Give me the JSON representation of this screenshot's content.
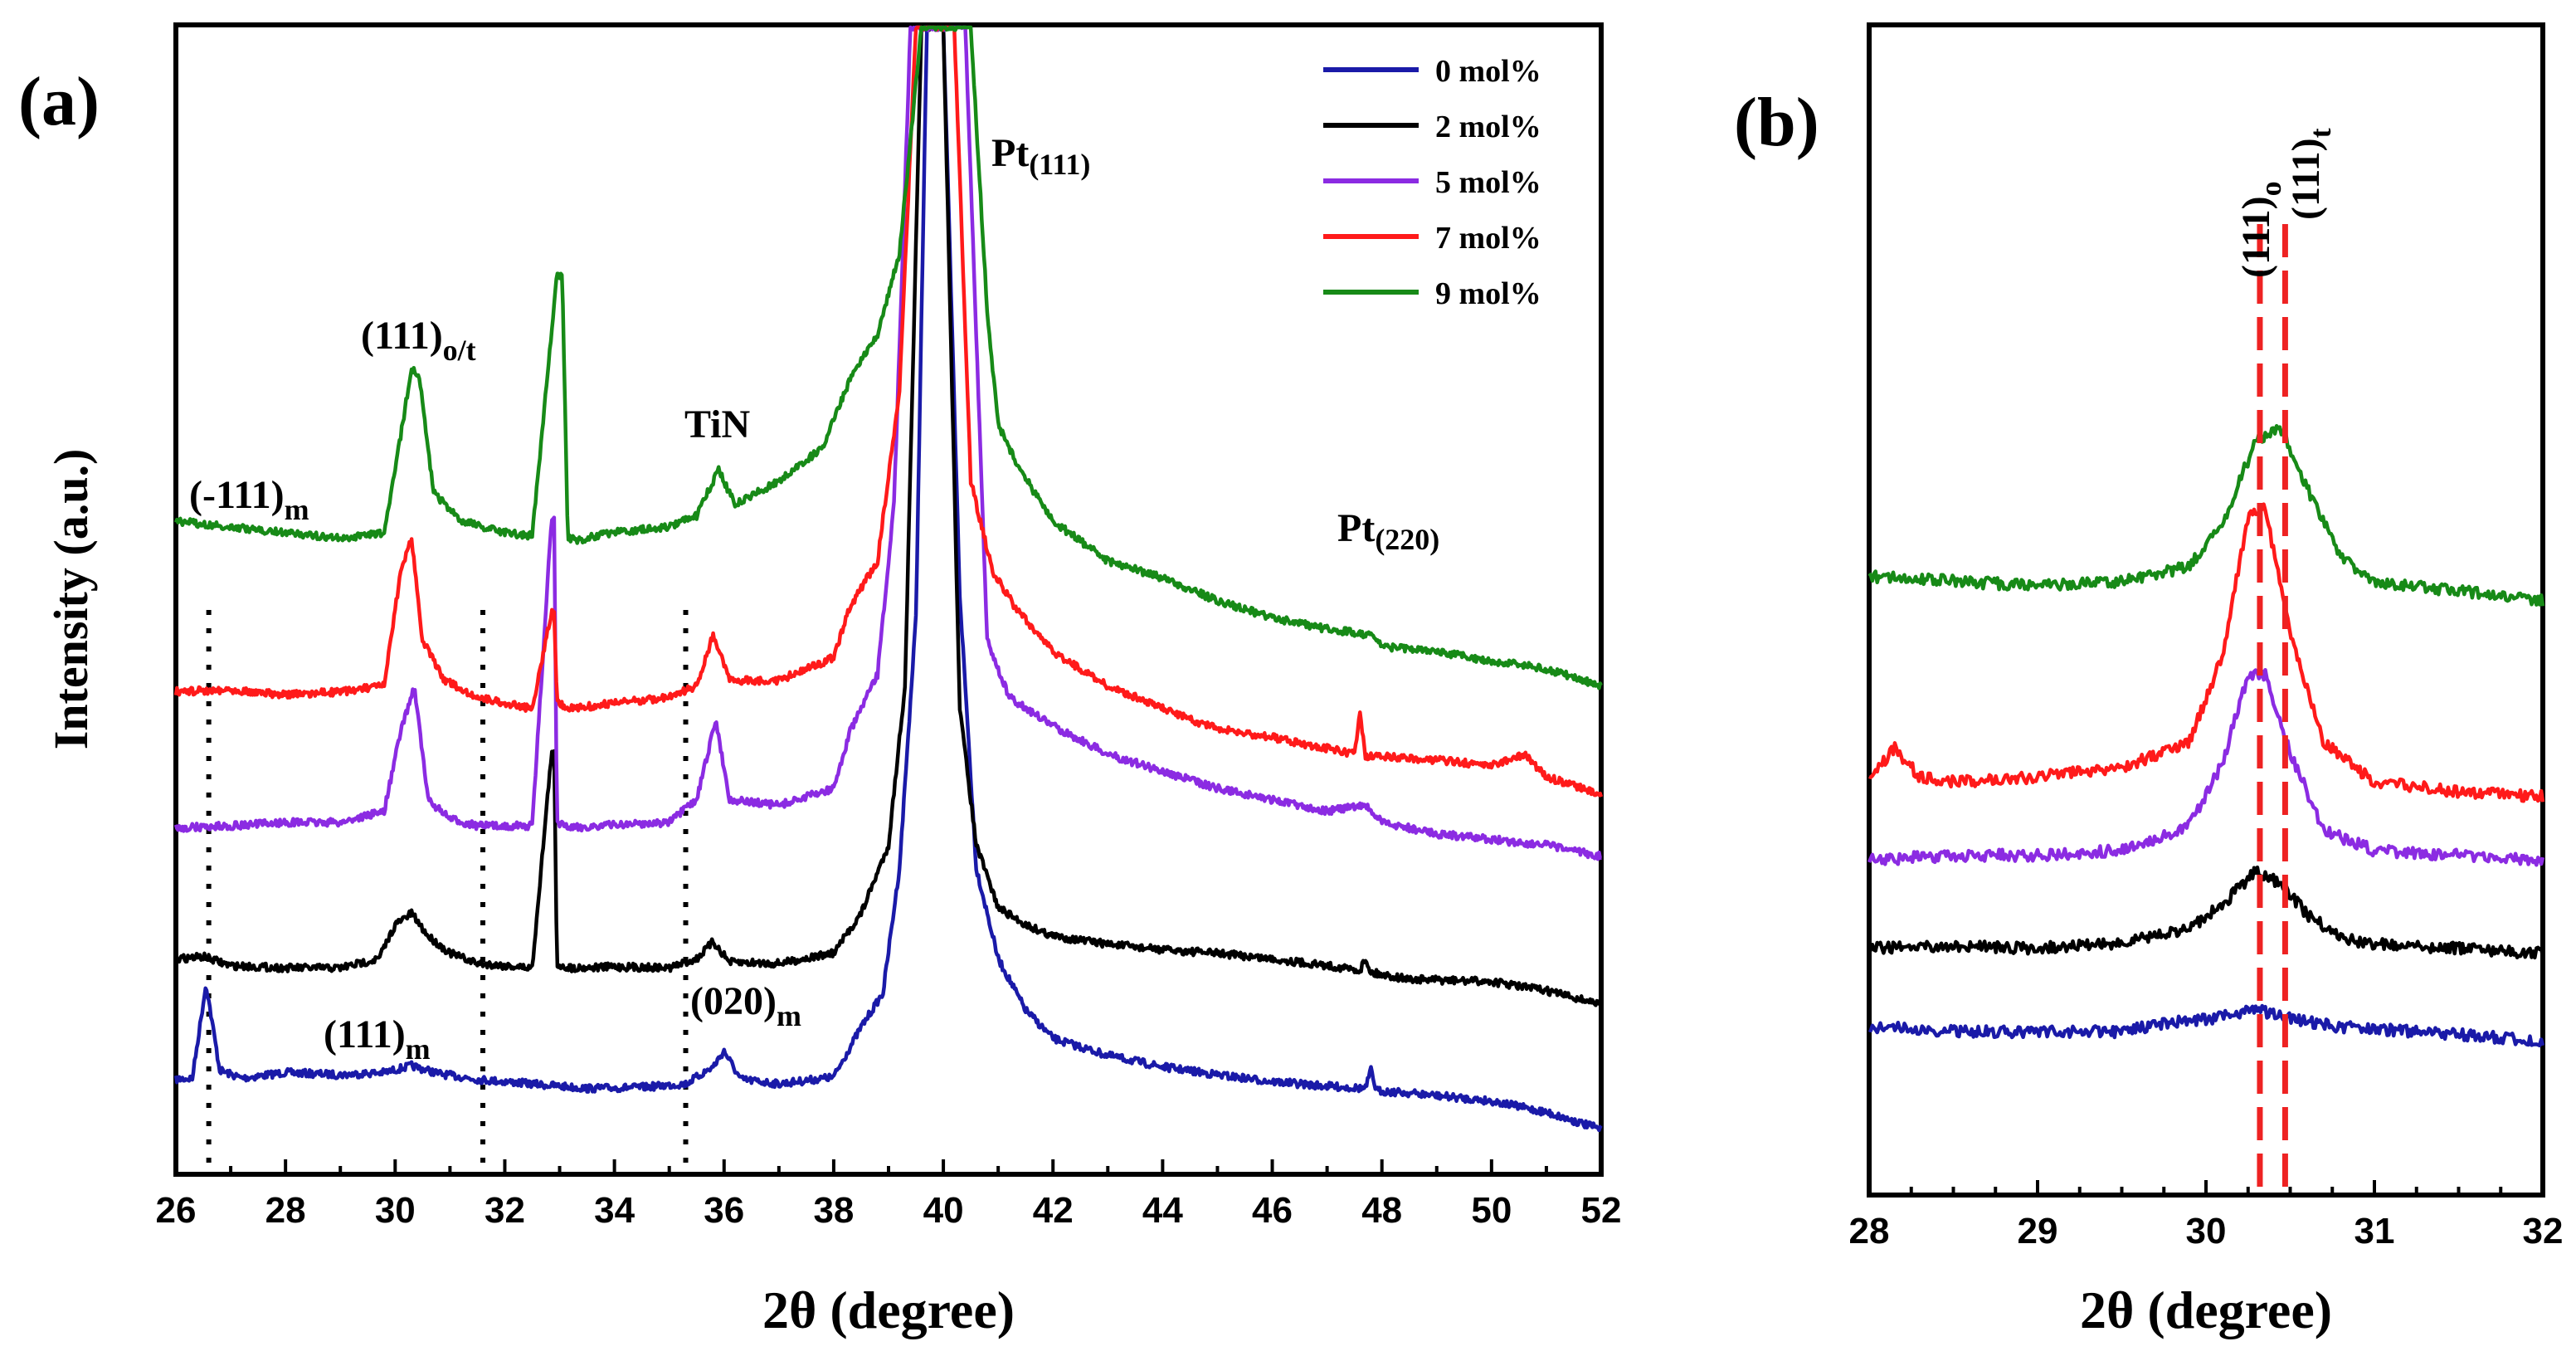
{
  "chart_data": [
    {
      "panel": "(a)",
      "type": "line",
      "xlabel": "2θ (degree)",
      "ylabel": "Intensity (a.u.)",
      "xlim": [
        26,
        52
      ],
      "xticks": [
        26,
        28,
        30,
        32,
        34,
        36,
        38,
        40,
        42,
        44,
        46,
        48,
        50,
        52
      ],
      "y_ticks_shown": false,
      "legend": {
        "position": "top-right",
        "entries": [
          {
            "label": "0 mol%",
            "color": "#1a1aa8"
          },
          {
            "label": "2 mol%",
            "color": "#000000"
          },
          {
            "label": "5 mol%",
            "color": "#8b2be2"
          },
          {
            "label": "7 mol%",
            "color": "#ff1a1a"
          },
          {
            "label": "9 mol%",
            "color": "#178a17"
          }
        ]
      },
      "series": [
        {
          "name": "0 mol%",
          "color": "#1a1aa8",
          "x": [
            26,
            26.3,
            26.55,
            26.8,
            27.2,
            28,
            29,
            29.8,
            30.3,
            30.8,
            31.5,
            32.5,
            33.5,
            34.5,
            35.3,
            35.8,
            36.0,
            36.3,
            37,
            38,
            38.5,
            38.9,
            39.2,
            39.5,
            39.7,
            40.0,
            40.3,
            40.6,
            41.0,
            41.5,
            42,
            43,
            44,
            45,
            46,
            47,
            47.7,
            47.8,
            47.9,
            48.5,
            50,
            51,
            52
          ],
          "y": [
            0.74,
            0.75,
            1.58,
            0.82,
            0.75,
            0.8,
            0.78,
            0.8,
            0.86,
            0.79,
            0.74,
            0.7,
            0.66,
            0.67,
            0.7,
            0.85,
            0.99,
            0.74,
            0.7,
            0.76,
            1.2,
            1.5,
            2.6,
            4.8,
            10.0,
            10.0,
            5.0,
            2.6,
            1.8,
            1.35,
            1.1,
            0.95,
            0.85,
            0.78,
            0.72,
            0.68,
            0.66,
            0.82,
            0.64,
            0.62,
            0.55,
            0.45,
            0.3
          ]
        },
        {
          "name": "2 mol%",
          "color": "#000000",
          "x": [
            26,
            26.5,
            27,
            28,
            29,
            29.7,
            30.0,
            30.3,
            30.6,
            31,
            31.5,
            32.5,
            32.85,
            32.9,
            32.95,
            33.2,
            34,
            35,
            35.5,
            35.8,
            36.1,
            37,
            38,
            38.5,
            39,
            39.3,
            39.6,
            40.0,
            40.3,
            40.6,
            41,
            41.5,
            42,
            43,
            44,
            45,
            46,
            47,
            47.6,
            47.7,
            47.8,
            48.5,
            50,
            51,
            52
          ],
          "y": [
            1.8,
            1.82,
            1.74,
            1.72,
            1.72,
            1.8,
            2.1,
            2.2,
            2.0,
            1.85,
            1.76,
            1.72,
            3.6,
            3.6,
            1.75,
            1.72,
            1.73,
            1.72,
            1.8,
            1.95,
            1.77,
            1.76,
            1.85,
            2.2,
            2.8,
            4.2,
            10.0,
            10.0,
            4.0,
            2.8,
            2.25,
            2.1,
            2.0,
            1.93,
            1.88,
            1.85,
            1.8,
            1.74,
            1.7,
            1.8,
            1.68,
            1.62,
            1.6,
            1.52,
            1.4
          ]
        },
        {
          "name": "5 mol%",
          "color": "#8b2be2",
          "x": [
            26,
            27,
            28,
            29,
            29.8,
            30.1,
            30.35,
            30.6,
            31,
            31.5,
            32.5,
            32.85,
            32.9,
            32.95,
            33.2,
            34,
            35,
            35.5,
            35.85,
            36.1,
            37,
            38,
            38.3,
            38.8,
            39.1,
            39.4,
            39.7,
            40.1,
            40.4,
            40.8,
            41.2,
            42,
            43,
            44,
            45,
            46,
            47,
            47.7,
            48,
            49,
            50,
            51,
            52
          ],
          "y": [
            2.95,
            2.97,
            3.0,
            3.0,
            3.1,
            3.8,
            4.2,
            3.2,
            3.03,
            2.97,
            2.97,
            5.65,
            5.65,
            3.0,
            2.95,
            2.98,
            3.0,
            3.2,
            3.9,
            3.2,
            3.15,
            3.3,
            3.8,
            4.3,
            5.8,
            10.0,
            10.0,
            10.0,
            10.0,
            4.6,
            4.1,
            3.85,
            3.6,
            3.45,
            3.3,
            3.2,
            3.1,
            3.15,
            3.0,
            2.9,
            2.85,
            2.8,
            2.7
          ]
        },
        {
          "name": "7 mol%",
          "color": "#ff1a1a",
          "x": [
            26,
            27,
            28,
            29,
            29.8,
            30.1,
            30.3,
            30.5,
            30.9,
            31.5,
            32.5,
            32.85,
            32.9,
            32.95,
            33.2,
            34,
            35,
            35.5,
            35.8,
            36.1,
            37,
            38,
            38.3,
            38.8,
            39.2,
            39.5,
            39.8,
            40.2,
            40.5,
            40.9,
            41.3,
            42,
            43,
            44,
            45,
            46,
            47,
            47.5,
            47.6,
            47.7,
            48,
            49,
            50,
            50.6,
            51,
            52
          ],
          "y": [
            4.15,
            4.17,
            4.12,
            4.15,
            4.2,
            5.2,
            5.5,
            4.6,
            4.25,
            4.1,
            4.0,
            4.85,
            4.85,
            4.05,
            4.0,
            4.05,
            4.1,
            4.2,
            4.65,
            4.25,
            4.25,
            4.45,
            4.9,
            5.3,
            6.8,
            10.0,
            10.0,
            10.0,
            6.0,
            5.2,
            4.9,
            4.5,
            4.2,
            4.0,
            3.82,
            3.75,
            3.65,
            3.6,
            3.95,
            3.58,
            3.58,
            3.55,
            3.5,
            3.6,
            3.4,
            3.25
          ]
        },
        {
          "name": "9 mol%",
          "color": "#178a17",
          "x": [
            26,
            27,
            28,
            29,
            29.8,
            30.1,
            30.3,
            30.45,
            30.7,
            31.2,
            32,
            32.5,
            32.95,
            33.05,
            33.15,
            33.3,
            34,
            35,
            35.5,
            35.9,
            36.2,
            37,
            37.8,
            38.3,
            38.8,
            39.2,
            39.6,
            39.8,
            40.5,
            40.8,
            41,
            41.4,
            42,
            43,
            44,
            45,
            46,
            47,
            47.8,
            48,
            49,
            50,
            51,
            52
          ],
          "y": [
            5.65,
            5.6,
            5.55,
            5.5,
            5.55,
            6.4,
            7.0,
            6.9,
            5.9,
            5.65,
            5.55,
            5.52,
            7.8,
            7.8,
            5.5,
            5.48,
            5.55,
            5.6,
            5.7,
            6.1,
            5.8,
            6.0,
            6.3,
            6.9,
            7.3,
            8.0,
            10.0,
            10.0,
            10.0,
            7.5,
            6.5,
            6.1,
            5.65,
            5.3,
            5.15,
            4.95,
            4.8,
            4.7,
            4.65,
            4.55,
            4.5,
            4.42,
            4.35,
            4.2
          ]
        }
      ],
      "annotations": {
        "peaks": [
          {
            "base": "(-111)",
            "sub": "m"
          },
          {
            "base": "(111)",
            "sub": "o/t"
          },
          {
            "base": "TiN",
            "sub": ""
          },
          {
            "base": "Pt",
            "sub": "(111)"
          },
          {
            "base": "Pt",
            "sub": "(220)"
          },
          {
            "base": "(111)",
            "sub": "m"
          },
          {
            "base": "(020)",
            "sub": "m"
          }
        ],
        "dotted_reference_lines_x": [
          26.6,
          31.6,
          35.3
        ]
      }
    },
    {
      "panel": "(b)",
      "type": "line",
      "xlabel": "2θ (degree)",
      "xlim": [
        28,
        32
      ],
      "xticks": [
        28,
        29,
        30,
        31,
        32
      ],
      "y_ticks_shown": false,
      "series": [
        {
          "name": "0 mol%",
          "color": "#1a1aa8",
          "x": [
            28,
            28.5,
            29,
            29.5,
            29.8,
            30.1,
            30.3,
            30.5,
            30.8,
            31,
            31.5,
            32
          ],
          "y": [
            0.6,
            0.55,
            0.55,
            0.55,
            0.65,
            0.7,
            0.78,
            0.68,
            0.6,
            0.58,
            0.52,
            0.45
          ]
        },
        {
          "name": "2 mol%",
          "color": "#000000",
          "x": [
            28,
            28.5,
            29,
            29.5,
            29.9,
            30.1,
            30.3,
            30.45,
            30.6,
            30.8,
            31,
            31.5,
            32
          ],
          "y": [
            1.4,
            1.42,
            1.4,
            1.45,
            1.6,
            1.85,
            2.2,
            2.05,
            1.75,
            1.5,
            1.45,
            1.4,
            1.35
          ]
        },
        {
          "name": "5 mol%",
          "color": "#8b2be2",
          "x": [
            28,
            28.5,
            29,
            29.5,
            29.9,
            30.1,
            30.25,
            30.35,
            30.5,
            30.7,
            31,
            31.5,
            32
          ],
          "y": [
            2.3,
            2.35,
            2.35,
            2.4,
            2.65,
            3.3,
            4.2,
            4.2,
            3.4,
            2.6,
            2.4,
            2.35,
            2.3
          ]
        },
        {
          "name": "7 mol%",
          "color": "#ff1a1a",
          "x": [
            28,
            28.15,
            28.3,
            28.5,
            29,
            29.5,
            29.9,
            30.1,
            30.25,
            30.35,
            30.5,
            30.7,
            31,
            31.5,
            32
          ],
          "y": [
            3.1,
            3.45,
            3.15,
            3.1,
            3.15,
            3.25,
            3.5,
            4.4,
            5.8,
            5.9,
            4.6,
            3.5,
            3.1,
            3.0,
            2.95
          ]
        },
        {
          "name": "9 mol%",
          "color": "#178a17",
          "x": [
            28,
            28.5,
            29,
            29.5,
            29.9,
            30.1,
            30.3,
            30.45,
            30.6,
            30.8,
            31,
            31.5,
            32
          ],
          "y": [
            5.2,
            5.15,
            5.1,
            5.15,
            5.3,
            5.75,
            6.6,
            6.7,
            6.1,
            5.4,
            5.15,
            5.05,
            4.95
          ]
        }
      ],
      "annotations": {
        "peaks": [
          {
            "base": "(111)",
            "sub": "o"
          },
          {
            "base": "(111)",
            "sub": "t"
          }
        ],
        "dashed_reference_lines_x": [
          30.32,
          30.47
        ]
      }
    }
  ]
}
